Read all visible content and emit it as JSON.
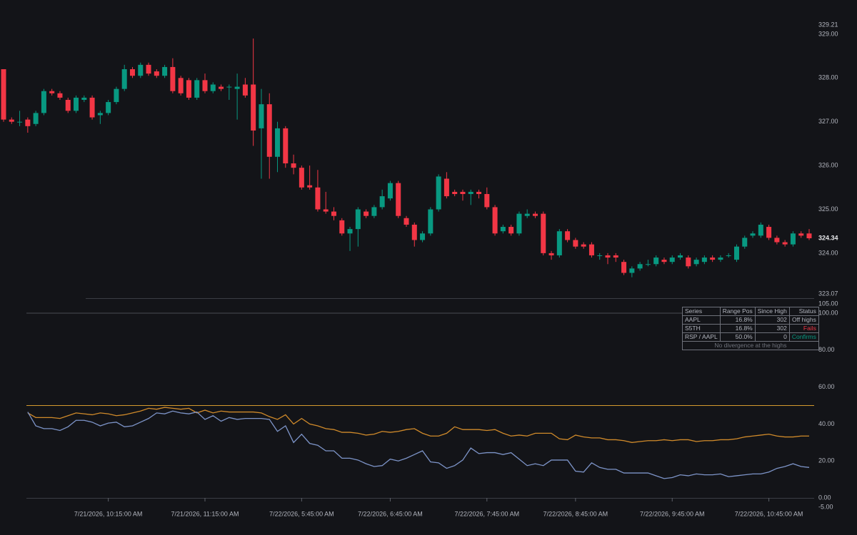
{
  "chart_data": [
    {
      "type": "candlestick",
      "up_color": "#089981",
      "down_color": "#f23645",
      "ylim": [
        323.07,
        329.21
      ],
      "yticks": [
        329.21,
        {
          "value": 329,
          "label": "329.00"
        },
        {
          "value": 328,
          "label": "328.00"
        },
        {
          "value": 327,
          "label": "327.00"
        },
        {
          "value": 326,
          "label": "326.00"
        },
        {
          "value": 325,
          "label": "325.00"
        },
        {
          "value": 324,
          "label": "324.00"
        },
        323.07
      ],
      "last_price": 324.34,
      "open": [
        328.2,
        327.05,
        327.0,
        327.05,
        326.95,
        327.2,
        327.7,
        327.65,
        327.5,
        327.25,
        327.5,
        327.55,
        327.15,
        327.2,
        327.45,
        327.75,
        328.2,
        328.05,
        328.3,
        328.15,
        328.05,
        328.25,
        328.0,
        327.95,
        327.55,
        327.95,
        327.7,
        327.8,
        327.8,
        327.75,
        327.85,
        327.85,
        326.85,
        327.4,
        326.2,
        326.85,
        326.05,
        325.95,
        325.55,
        325.5,
        325.0,
        324.95,
        324.75,
        324.45,
        324.55,
        324.95,
        324.85,
        325.05,
        325.25,
        325.6,
        324.8,
        324.65,
        324.3,
        324.45,
        325.0,
        325.7,
        325.4,
        325.4,
        325.35,
        325.4,
        325.35,
        325.05,
        324.5,
        324.6,
        324.45,
        324.85,
        324.9,
        324.9,
        324.0,
        323.95,
        324.5,
        324.3,
        324.2,
        324.2,
        323.95,
        323.95,
        323.95,
        323.8,
        323.55,
        323.65,
        323.75,
        323.75,
        323.85,
        323.8,
        323.9,
        323.9,
        323.75,
        323.8,
        323.9,
        323.85,
        323.95,
        323.85,
        324.15,
        324.4,
        324.4,
        324.6,
        324.35,
        324.25,
        324.2,
        324.45,
        324.45
      ],
      "high": [
        328.2,
        327.1,
        327.25,
        327.1,
        327.25,
        327.75,
        327.75,
        327.7,
        327.55,
        327.6,
        327.6,
        327.6,
        327.25,
        327.5,
        327.8,
        328.3,
        328.25,
        328.35,
        328.35,
        328.2,
        328.3,
        328.45,
        328.05,
        328.0,
        328.0,
        328.1,
        327.9,
        327.85,
        327.85,
        328.1,
        328.0,
        328.9,
        327.75,
        327.65,
        327.0,
        326.9,
        326.25,
        326.0,
        326.0,
        325.9,
        325.4,
        325.05,
        324.8,
        324.6,
        325.05,
        325.0,
        325.1,
        325.45,
        325.65,
        325.65,
        324.85,
        324.7,
        324.5,
        325.05,
        325.8,
        325.85,
        325.45,
        325.45,
        325.45,
        325.45,
        325.5,
        325.1,
        324.65,
        324.65,
        324.95,
        325.0,
        324.95,
        324.95,
        324.05,
        324.55,
        324.55,
        324.35,
        324.25,
        324.25,
        324.0,
        324.0,
        324.0,
        323.85,
        323.7,
        323.8,
        323.85,
        323.95,
        323.9,
        323.95,
        324.0,
        323.95,
        323.9,
        323.95,
        323.95,
        323.95,
        324.0,
        324.2,
        324.4,
        324.5,
        324.7,
        324.65,
        324.4,
        324.3,
        324.5,
        324.5,
        324.55
      ],
      "low": [
        327.0,
        326.95,
        326.9,
        326.75,
        326.9,
        327.15,
        327.6,
        327.5,
        327.2,
        327.2,
        327.45,
        327.05,
        326.95,
        327.15,
        327.4,
        327.7,
        328.0,
        328.0,
        328.05,
        328.0,
        328.0,
        327.65,
        327.6,
        327.5,
        327.5,
        327.65,
        327.65,
        327.7,
        327.5,
        327.05,
        327.55,
        326.45,
        325.7,
        325.7,
        325.85,
        325.95,
        325.8,
        325.45,
        325.45,
        324.95,
        324.9,
        324.75,
        324.4,
        324.05,
        324.15,
        324.8,
        324.8,
        325.0,
        325.2,
        324.8,
        324.6,
        324.15,
        324.25,
        324.4,
        324.95,
        325.25,
        325.3,
        325.2,
        325.1,
        325.25,
        325.0,
        324.4,
        324.45,
        324.4,
        324.4,
        324.8,
        324.8,
        323.95,
        323.85,
        323.9,
        324.25,
        324.1,
        324.1,
        323.9,
        323.85,
        323.75,
        323.8,
        323.5,
        323.45,
        323.6,
        323.7,
        323.7,
        323.75,
        323.75,
        323.85,
        323.65,
        323.7,
        323.75,
        323.8,
        323.8,
        323.9,
        323.8,
        324.1,
        324.35,
        324.35,
        324.3,
        324.2,
        324.15,
        324.15,
        324.35,
        324.3
      ],
      "close": [
        327.05,
        327.0,
        327.0,
        326.9,
        327.2,
        327.7,
        327.65,
        327.55,
        327.25,
        327.55,
        327.55,
        327.1,
        327.2,
        327.45,
        327.75,
        328.2,
        328.05,
        328.3,
        328.1,
        328.05,
        328.25,
        327.7,
        327.65,
        327.55,
        327.95,
        327.7,
        327.85,
        327.75,
        327.8,
        327.8,
        327.6,
        326.8,
        327.4,
        326.2,
        326.85,
        326.05,
        325.95,
        325.5,
        325.5,
        325.0,
        324.95,
        324.85,
        324.45,
        324.55,
        325.0,
        324.85,
        325.05,
        325.3,
        325.6,
        324.85,
        324.65,
        324.3,
        324.45,
        325.0,
        325.75,
        325.3,
        325.35,
        325.35,
        325.4,
        325.35,
        325.05,
        324.45,
        324.6,
        324.45,
        324.9,
        324.9,
        324.85,
        324.0,
        323.95,
        324.5,
        324.3,
        324.15,
        324.15,
        323.95,
        323.95,
        323.9,
        323.9,
        323.55,
        323.65,
        323.75,
        323.75,
        323.9,
        323.8,
        323.9,
        323.95,
        323.7,
        323.85,
        323.9,
        323.85,
        323.9,
        323.95,
        324.15,
        324.35,
        324.45,
        324.65,
        324.35,
        324.25,
        324.2,
        324.45,
        324.4,
        324.34
      ]
    },
    {
      "type": "line",
      "categories": [
        null,
        null,
        null,
        null,
        null,
        null,
        null,
        null,
        null,
        null,
        null,
        null,
        null,
        "7/21/2026, 10:15:00 AM",
        null,
        null,
        null,
        null,
        null,
        null,
        null,
        null,
        null,
        null,
        null,
        "7/21/2026, 11:15:00 AM",
        null,
        null,
        null,
        null,
        null,
        null,
        null,
        null,
        null,
        null,
        null,
        "7/22/2026, 5:45:00 AM",
        null,
        null,
        null,
        null,
        null,
        null,
        null,
        null,
        null,
        null,
        "7/22/2026, 6:45:00 AM",
        null,
        null,
        null,
        null,
        null,
        null,
        null,
        null,
        null,
        null,
        null,
        "7/22/2026, 7:45:00 AM",
        null,
        null,
        null,
        null,
        null,
        null,
        null,
        null,
        null,
        null,
        "7/22/2026, 8:45:00 AM",
        null,
        null,
        null,
        null,
        null,
        null,
        null,
        null,
        null,
        null,
        null,
        "7/22/2026, 9:45:00 AM",
        null,
        null,
        null,
        null,
        null,
        null,
        null,
        null,
        null,
        null,
        null,
        "7/22/2026, 10:45:00 AM",
        null,
        null,
        null,
        null,
        null
      ],
      "ylim": [
        -5,
        105
      ],
      "yticks": [
        {
          "value": 105,
          "label": "105.00"
        },
        {
          "value": 100,
          "label": "100.00"
        },
        {
          "value": 80,
          "label": "80.00"
        },
        {
          "value": 60,
          "label": "60.00"
        },
        {
          "value": 40,
          "label": "40.00"
        },
        {
          "value": 20,
          "label": "20.00"
        },
        {
          "value": 0,
          "label": "0.00"
        },
        {
          "value": -5,
          "label": "-5.00"
        }
      ],
      "hlines": [
        {
          "value": 100,
          "color": "#4a4d55"
        },
        {
          "value": 50,
          "color": "#d49a2e"
        }
      ],
      "series": [
        {
          "color": "#d08a2a",
          "values": [
            null,
            null,
            null,
            46,
            43.5,
            43.5,
            43.5,
            43,
            44.5,
            46,
            45.5,
            45,
            46,
            45.5,
            44.5,
            45,
            46,
            47,
            48.5,
            48,
            49,
            48.5,
            48,
            48.5,
            46,
            47.5,
            46,
            47,
            46.5,
            46.5,
            46.5,
            46.5,
            46,
            44,
            42.5,
            45,
            40,
            43,
            40,
            39,
            37.5,
            37,
            35.5,
            35.5,
            35,
            34,
            34.5,
            36,
            35.5,
            36,
            37,
            37.5,
            35,
            33.5,
            33.5,
            35,
            38.5,
            37,
            37,
            37,
            36.5,
            37,
            35,
            33.5,
            34,
            33.5,
            35,
            35,
            35,
            32,
            31.5,
            34,
            33,
            32.5,
            32.5,
            31.5,
            31.5,
            31,
            30,
            30.5,
            31,
            31,
            31.5,
            31,
            31.5,
            31.5,
            30.5,
            31,
            31,
            31.5,
            31.5,
            32,
            33,
            33.5,
            34,
            34.5,
            33.5,
            33,
            33,
            33.5,
            33.5
          ]
        },
        {
          "color": "#7d94c8",
          "values": [
            null,
            null,
            null,
            46.5,
            39,
            37.5,
            37.5,
            36.5,
            38.5,
            42,
            42,
            41,
            39,
            40.5,
            41,
            38.5,
            39,
            41,
            43,
            46,
            45.5,
            47,
            46,
            45.5,
            46.5,
            42.5,
            44.5,
            41.5,
            43.5,
            42.5,
            43,
            43,
            43,
            42.5,
            36,
            39,
            30,
            34.5,
            29.5,
            28.5,
            25.5,
            25.5,
            21.5,
            21.5,
            20.5,
            18.5,
            17,
            17.5,
            21,
            20,
            21.5,
            23.5,
            25.5,
            19.5,
            19,
            16,
            17.5,
            20.5,
            27,
            24,
            24.5,
            24.5,
            23.5,
            24.5,
            21,
            17.5,
            18.5,
            17.5,
            20.5,
            20.5,
            20.5,
            14.5,
            14,
            19,
            16.5,
            15.5,
            15.5,
            13.5,
            13.5,
            13.5,
            13.5,
            12,
            10.5,
            11,
            12.5,
            12,
            13,
            12.5,
            12.5,
            13,
            11.5,
            12,
            12.5,
            13,
            13,
            14,
            16,
            17,
            18.5,
            17,
            16.5
          ]
        }
      ]
    }
  ],
  "table": {
    "columns": [
      "Series",
      "Range Pos",
      "Since High",
      "Status"
    ],
    "rows": [
      [
        "AAPL",
        "16.8%",
        "302",
        "Off highs"
      ],
      [
        "S5TH",
        "16.8%",
        "302",
        "Fails"
      ],
      [
        "RSP / AAPL",
        "50.0%",
        "0",
        "Confirms"
      ]
    ],
    "status_colors": [
      "#b2b5be",
      "#f23645",
      "#089981"
    ],
    "footer": "No divergence at the highs"
  }
}
